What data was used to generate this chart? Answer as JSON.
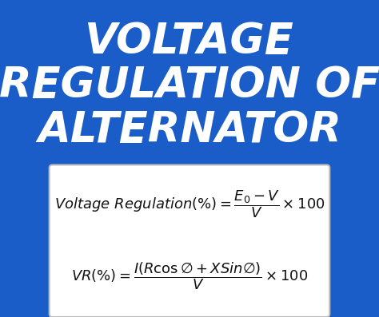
{
  "bg_color": "#1a5dc8",
  "title_lines": [
    "VOLTAGE",
    "REGULATION OF",
    "ALTERNATOR"
  ],
  "title_color": "#ffffff",
  "title_fontsize": 38,
  "box_bg": "#ffffff",
  "box_edge_color": "#bbbbbb",
  "formula1": "$\\mathit{Voltage\\ Regulation(\\%)} = \\dfrac{E_0 - V}{V} \\times 100$",
  "formula2": "$\\mathit{VR(\\%)} = \\dfrac{I(R\\cos\\varnothing + XSin\\varnothing)}{V} \\times 100$",
  "formula_color": "#111111",
  "formula_fontsize": 13
}
